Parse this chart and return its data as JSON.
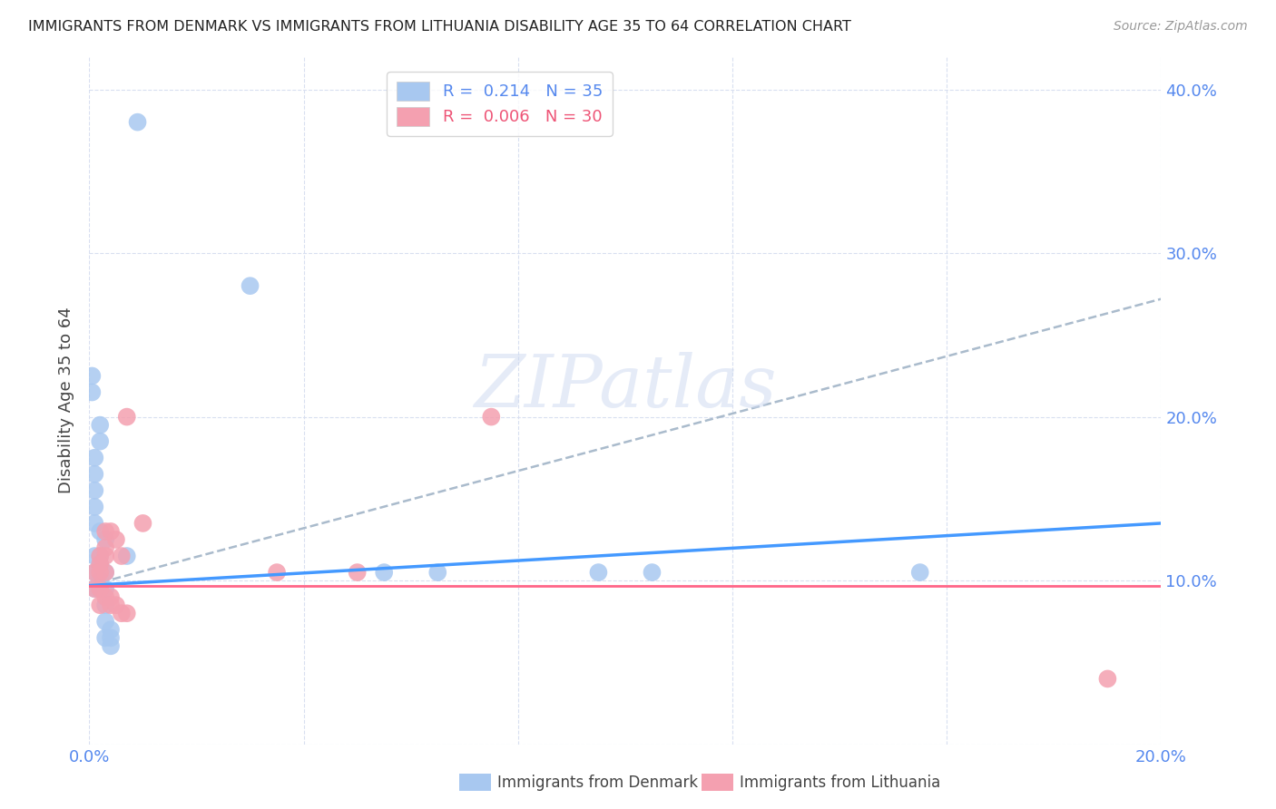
{
  "title": "IMMIGRANTS FROM DENMARK VS IMMIGRANTS FROM LITHUANIA DISABILITY AGE 35 TO 64 CORRELATION CHART",
  "source": "Source: ZipAtlas.com",
  "ylabel": "Disability Age 35 to 64",
  "xlim": [
    0.0,
    0.2
  ],
  "ylim": [
    0.0,
    0.42
  ],
  "xticks": [
    0.0,
    0.04,
    0.08,
    0.12,
    0.16,
    0.2
  ],
  "yticks": [
    0.0,
    0.1,
    0.2,
    0.3,
    0.4
  ],
  "denmark_color": "#a8c8f0",
  "lithuania_color": "#f4a0b0",
  "denmark_scatter": [
    [
      0.0005,
      0.225
    ],
    [
      0.0005,
      0.215
    ],
    [
      0.001,
      0.175
    ],
    [
      0.001,
      0.165
    ],
    [
      0.001,
      0.155
    ],
    [
      0.001,
      0.145
    ],
    [
      0.001,
      0.135
    ],
    [
      0.001,
      0.115
    ],
    [
      0.001,
      0.105
    ],
    [
      0.001,
      0.095
    ],
    [
      0.002,
      0.195
    ],
    [
      0.002,
      0.185
    ],
    [
      0.002,
      0.13
    ],
    [
      0.002,
      0.115
    ],
    [
      0.002,
      0.11
    ],
    [
      0.002,
      0.1
    ],
    [
      0.002,
      0.095
    ],
    [
      0.003,
      0.125
    ],
    [
      0.003,
      0.105
    ],
    [
      0.003,
      0.095
    ],
    [
      0.003,
      0.085
    ],
    [
      0.003,
      0.075
    ],
    [
      0.003,
      0.065
    ],
    [
      0.004,
      0.07
    ],
    [
      0.004,
      0.065
    ],
    [
      0.004,
      0.06
    ],
    [
      0.007,
      0.115
    ],
    [
      0.009,
      0.38
    ],
    [
      0.03,
      0.28
    ],
    [
      0.055,
      0.105
    ],
    [
      0.065,
      0.105
    ],
    [
      0.095,
      0.105
    ],
    [
      0.105,
      0.105
    ],
    [
      0.155,
      0.105
    ]
  ],
  "lithuania_scatter": [
    [
      0.001,
      0.105
    ],
    [
      0.001,
      0.095
    ],
    [
      0.002,
      0.115
    ],
    [
      0.002,
      0.11
    ],
    [
      0.002,
      0.105
    ],
    [
      0.002,
      0.095
    ],
    [
      0.002,
      0.085
    ],
    [
      0.003,
      0.13
    ],
    [
      0.003,
      0.12
    ],
    [
      0.003,
      0.115
    ],
    [
      0.003,
      0.105
    ],
    [
      0.003,
      0.09
    ],
    [
      0.004,
      0.13
    ],
    [
      0.004,
      0.09
    ],
    [
      0.004,
      0.085
    ],
    [
      0.005,
      0.125
    ],
    [
      0.005,
      0.085
    ],
    [
      0.006,
      0.115
    ],
    [
      0.006,
      0.08
    ],
    [
      0.007,
      0.2
    ],
    [
      0.007,
      0.08
    ],
    [
      0.01,
      0.135
    ],
    [
      0.035,
      0.105
    ],
    [
      0.05,
      0.105
    ],
    [
      0.075,
      0.2
    ],
    [
      0.19,
      0.04
    ]
  ],
  "denmark_line_color": "#4499ff",
  "denmark_line": [
    [
      0.0,
      0.097
    ],
    [
      0.2,
      0.135
    ]
  ],
  "lithuania_line_color": "#ff6688",
  "lithuania_line": [
    [
      0.0,
      0.097
    ],
    [
      0.2,
      0.097
    ]
  ],
  "dashed_line_color": "#aabbcc",
  "dashed_line": [
    [
      0.0,
      0.097
    ],
    [
      0.2,
      0.272
    ]
  ],
  "watermark": "ZIPatlas",
  "background_color": "#ffffff",
  "grid_color": "#d8dff0"
}
